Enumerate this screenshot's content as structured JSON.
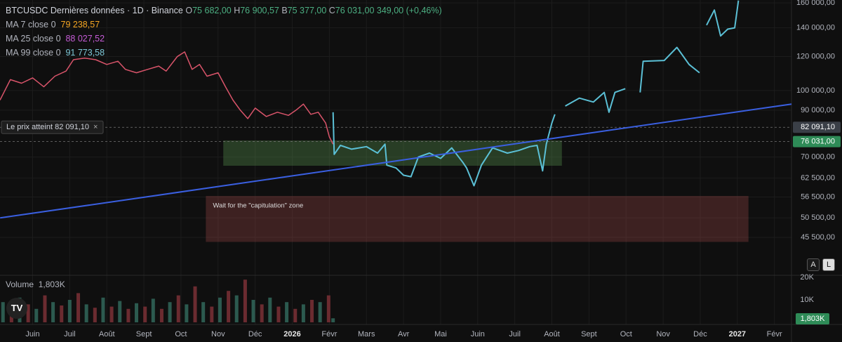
{
  "header": {
    "symbol": "BTCUSDC Dernières données · 1D · Binance",
    "ohlc": [
      {
        "key": "O",
        "value": "75 682,00"
      },
      {
        "key": "H",
        "value": "76 900,57"
      },
      {
        "key": "B",
        "value": "75 377,00"
      },
      {
        "key": "C",
        "value": "76 031,00"
      }
    ],
    "change": "349,00 (+0,46%)"
  },
  "indicators": [
    {
      "name": "MA 7 close 0",
      "value": "79 238,57",
      "color": "#f5a623"
    },
    {
      "name": "MA 25 close 0",
      "value": "88 027,52",
      "color": "#c55cd6"
    },
    {
      "name": "MA 99 close 0",
      "value": "91 773,58",
      "color": "#7ec8d8"
    }
  ],
  "buttons": [
    "A",
    "L"
  ],
  "chart_data": {
    "type": "line",
    "yscale": "log",
    "grid": true,
    "xlim": [
      -0.88,
      20.46
    ],
    "ylim": [
      37400,
      162500
    ],
    "xticks": [
      {
        "value": 0,
        "label": "Juin"
      },
      {
        "value": 1,
        "label": "Juil"
      },
      {
        "value": 2,
        "label": "Août"
      },
      {
        "value": 3,
        "label": "Sept"
      },
      {
        "value": 4,
        "label": "Oct"
      },
      {
        "value": 5,
        "label": "Nov"
      },
      {
        "value": 6,
        "label": "Déc"
      },
      {
        "value": 7,
        "label": "2026"
      },
      {
        "value": 8,
        "label": "Févr"
      },
      {
        "value": 9,
        "label": "Mars"
      },
      {
        "value": 10,
        "label": "Avr"
      },
      {
        "value": 11,
        "label": "Mai"
      },
      {
        "value": 12,
        "label": "Juin"
      },
      {
        "value": 13,
        "label": "Juil"
      },
      {
        "value": 14,
        "label": "Août"
      },
      {
        "value": 15,
        "label": "Sept"
      },
      {
        "value": 16,
        "label": "Oct"
      },
      {
        "value": 17,
        "label": "Nov"
      },
      {
        "value": 18,
        "label": "Déc"
      },
      {
        "value": 19,
        "label": "2027"
      },
      {
        "value": 20,
        "label": "Févr"
      }
    ],
    "yticks": [
      {
        "value": 160000,
        "label": "160 000,00"
      },
      {
        "value": 140000,
        "label": "140 000,00"
      },
      {
        "value": 120000,
        "label": "120 000,00"
      },
      {
        "value": 100000,
        "label": "100 000,00"
      },
      {
        "value": 90000,
        "label": "90 000,00"
      },
      {
        "value": 70000,
        "label": "70 000,00"
      },
      {
        "value": 62500,
        "label": "62 500,00"
      },
      {
        "value": 56500,
        "label": "56 500,00"
      },
      {
        "value": 50500,
        "label": "50 500,00"
      },
      {
        "value": 45500,
        "label": "45 500,00"
      }
    ],
    "price_lines": [
      {
        "value": 82091.1,
        "label": "82 091,10",
        "alert": "Le prix atteint 82 091,10",
        "color": "#3a3f47"
      },
      {
        "value": 76031,
        "label": "76 031,00",
        "color": "#2e8b57"
      }
    ],
    "series": [
      {
        "name": "BTCUSDC",
        "color": "#d9546a",
        "width": 1.5,
        "x": [
          -0.88,
          -0.6,
          -0.3,
          0,
          0.3,
          0.6,
          0.9,
          1.1,
          1.4,
          1.7,
          2.0,
          2.3,
          2.5,
          2.8,
          3.1,
          3.4,
          3.6,
          3.9,
          4.1,
          4.3,
          4.5,
          4.7,
          5.0,
          5.2,
          5.4,
          5.6,
          5.8,
          6.0,
          6.3,
          6.6,
          6.9,
          7.1,
          7.3,
          7.5,
          7.7,
          7.9,
          8.0,
          8.1
        ],
        "values": [
          95000,
          106000,
          104000,
          107000,
          102000,
          108000,
          111000,
          118000,
          119000,
          118000,
          115000,
          117000,
          112000,
          110000,
          112000,
          114000,
          111000,
          120000,
          123000,
          112000,
          115000,
          108000,
          110000,
          102000,
          95000,
          90000,
          86000,
          91000,
          87000,
          89000,
          87500,
          90000,
          93000,
          88000,
          89000,
          84000,
          78000,
          75000
        ]
      },
      {
        "name": "Projection",
        "color": "#5bc0d6",
        "width": 2,
        "x": [
          8.1,
          8.13,
          8.3,
          8.6,
          9.0,
          9.3,
          9.5,
          9.55,
          9.8,
          10.0,
          10.2,
          10.4,
          10.7,
          11.0,
          11.3,
          11.6,
          11.7,
          11.9,
          12.1,
          12.4,
          12.8,
          13.1,
          13.4,
          13.6,
          13.75,
          13.85,
          14.0,
          14.08,
          14.2,
          14.36,
          14.74,
          15.12,
          15.41,
          15.54,
          15.7,
          15.98,
          16.2,
          16.38,
          16.46,
          17.03,
          17.37,
          17.7,
          17.98,
          18.08,
          18.17,
          18.38,
          18.55,
          18.74,
          18.93,
          19.03
        ],
        "values": [
          89000,
          71000,
          74500,
          73000,
          74000,
          71500,
          75000,
          67000,
          66000,
          63500,
          63000,
          70000,
          71500,
          69500,
          73500,
          68000,
          66000,
          60000,
          67000,
          73500,
          71500,
          72500,
          74000,
          74500,
          65000,
          75000,
          84000,
          88000,
          null,
          92000,
          96000,
          94000,
          99000,
          89000,
          99000,
          101000,
          null,
          99000,
          117000,
          117500,
          126000,
          115000,
          110000,
          null,
          142000,
          154000,
          134000,
          139000,
          140000,
          162000
        ]
      },
      {
        "name": "Trendline",
        "color": "#3a5fe0",
        "width": 2,
        "x": [
          -0.876,
          20.46
        ],
        "values": [
          50500,
          93000
        ]
      }
    ],
    "zones": [
      {
        "color": "rgba(90,150,80,0.35)",
        "x": [
          5.14,
          14.27
        ],
        "y": [
          66800,
          76500
        ]
      },
      {
        "color": "rgba(150,70,70,0.35)",
        "x": [
          4.67,
          19.3
        ],
        "y": [
          44400,
          56800
        ],
        "label": "Wait for the \"capitulation\" zone"
      }
    ],
    "volume": {
      "title": "Volume",
      "ylim": [
        0,
        20000
      ],
      "yticks": [
        {
          "value": 10000,
          "label": "10K"
        },
        {
          "value": 20000,
          "label": "20K"
        }
      ],
      "x": [
        -0.8,
        -0.57,
        -0.35,
        -0.12,
        0.1,
        0.33,
        0.55,
        0.78,
        1.0,
        1.23,
        1.45,
        1.68,
        1.9,
        2.13,
        2.35,
        2.58,
        2.8,
        3.03,
        3.25,
        3.48,
        3.7,
        3.93,
        4.15,
        4.38,
        4.6,
        4.83,
        5.05,
        5.28,
        5.5,
        5.73,
        5.95,
        6.18,
        6.4,
        6.63,
        6.85,
        7.08,
        7.3,
        7.53,
        7.75,
        7.98,
        8.1
      ],
      "values": [
        9000,
        7000,
        11000,
        8000,
        6000,
        12000,
        9000,
        7500,
        10000,
        13000,
        8000,
        6500,
        11000,
        7000,
        9500,
        6000,
        8500,
        7000,
        10500,
        6000,
        9000,
        12000,
        8000,
        16000,
        9000,
        7000,
        11000,
        14000,
        12000,
        19000,
        10000,
        8000,
        11000,
        7000,
        9000,
        6000,
        8000,
        10000,
        9000,
        12000,
        1803
      ],
      "last_label": "1,803K",
      "colors": [
        "#2c5a4f",
        "#6b2b30"
      ]
    }
  }
}
